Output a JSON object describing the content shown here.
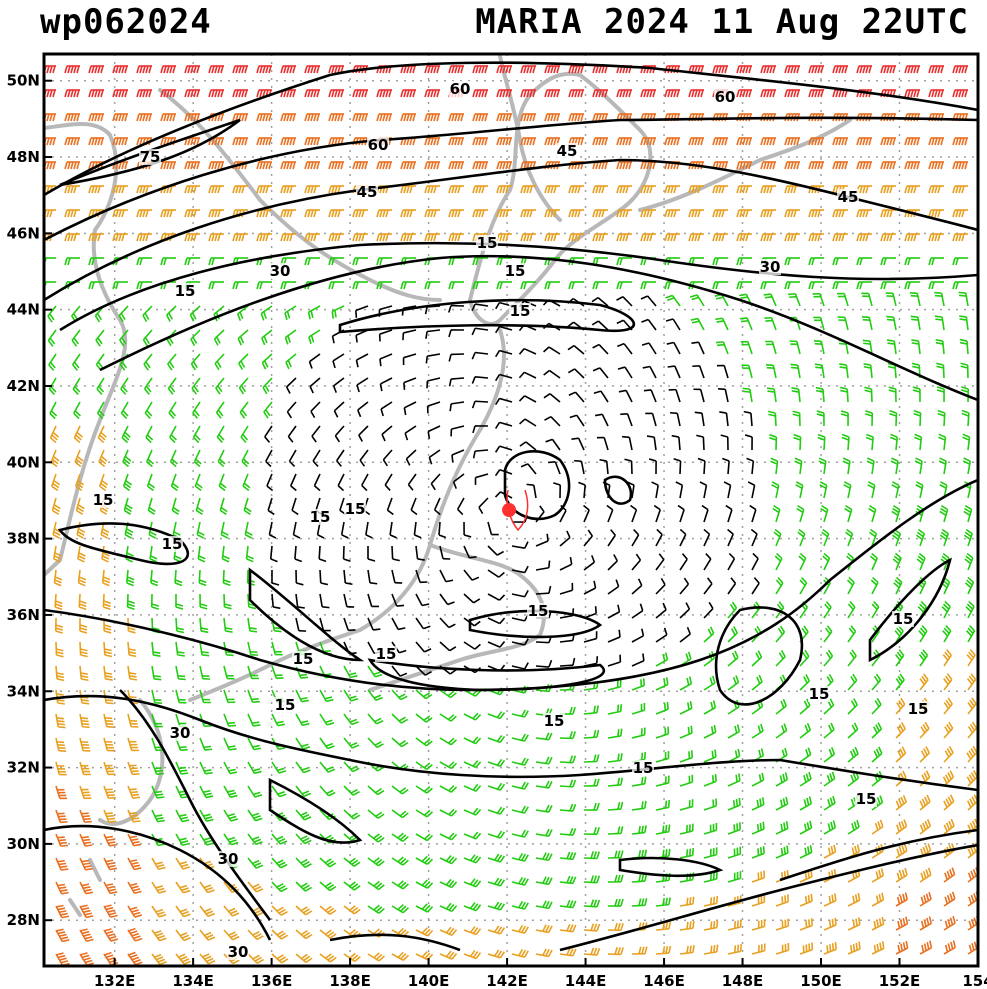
{
  "header": {
    "left": "wp062024",
    "right": "MARIA 2024 11 Aug 22UTC"
  },
  "map": {
    "lon_range": [
      130.2,
      154.0
    ],
    "lat_range": [
      26.8,
      50.7
    ],
    "lon_ticks": [
      "132E",
      "134E",
      "136E",
      "138E",
      "140E",
      "142E",
      "144E",
      "146E",
      "148E",
      "150E",
      "152E",
      "154"
    ],
    "lat_ticks": [
      "50N",
      "48N",
      "46N",
      "44N",
      "42N",
      "40N",
      "38N",
      "36N",
      "34N",
      "32N",
      "30N",
      "28N"
    ],
    "storm_center": {
      "lon": 142.05,
      "lat": 38.75
    },
    "contour_labels": [
      "60",
      "60",
      "60",
      "75",
      "45",
      "45",
      "45",
      "30",
      "30",
      "30",
      "30",
      "30",
      "15",
      "15",
      "15",
      "15",
      "15",
      "15",
      "15",
      "15",
      "15",
      "15",
      "15",
      "15",
      "15",
      "15",
      "15",
      "15",
      "15",
      "15"
    ],
    "colors": {
      "calm": "#000000",
      "light": "#22cc11",
      "moderate": "#e8a020",
      "strong": "#e87020",
      "very_strong": "#e83030",
      "coast": "#b8b8b8",
      "storm": "#ff3030",
      "grid": "#a0a0a0"
    }
  }
}
